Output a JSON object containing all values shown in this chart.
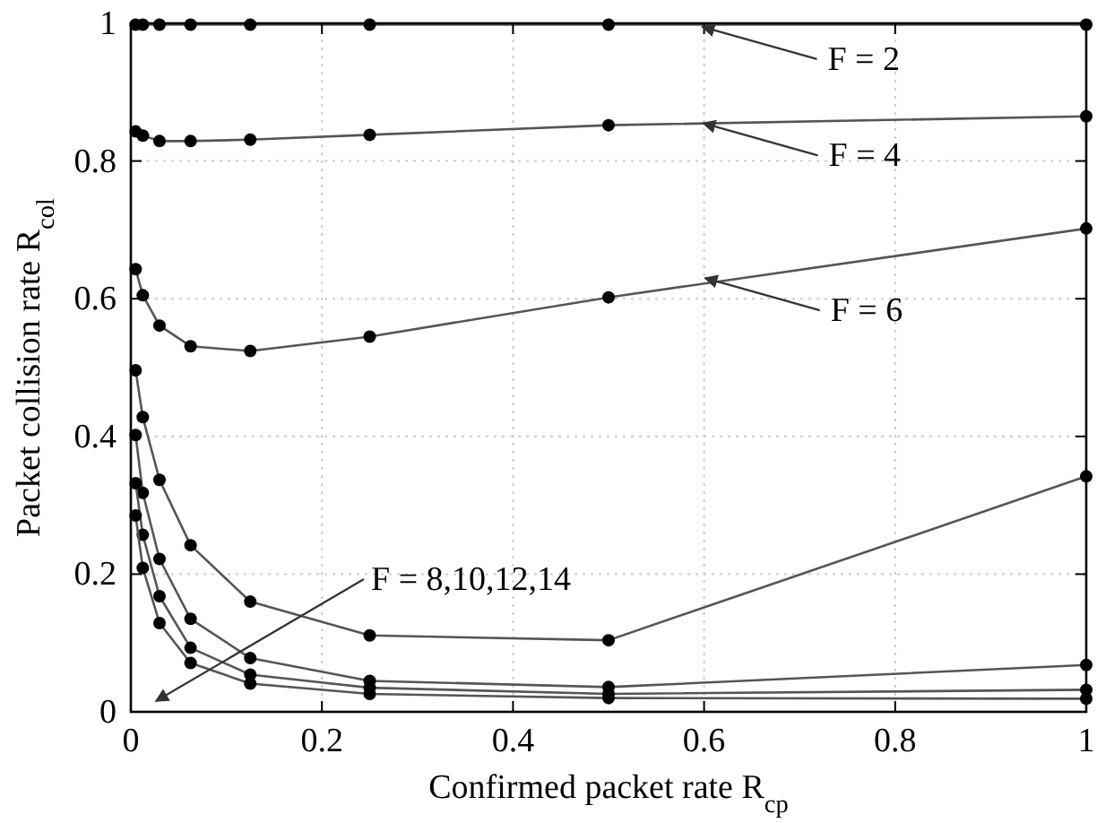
{
  "chart_data": {
    "type": "line",
    "xlabel": "Confirmed packet rate R$_{cp}$",
    "ylabel": "Packet collision rate R$_{col}$",
    "xlim": [
      0,
      1
    ],
    "ylim": [
      0,
      1
    ],
    "xticks": [
      0,
      0.2,
      0.4,
      0.6,
      0.8,
      1
    ],
    "yticks": [
      0,
      0.2,
      0.4,
      0.6,
      0.8,
      1
    ],
    "grid": true,
    "marker": "circle",
    "line_style": "solid",
    "x": [
      0.005,
      0.0125,
      0.03,
      0.0625,
      0.125,
      0.25,
      0.5,
      1
    ],
    "series": [
      {
        "color": "#555555",
        "values": [
          0.998,
          0.998,
          0.998,
          0.998,
          0.998,
          0.998,
          0.998,
          0.998
        ]
      },
      {
        "color": "#555555",
        "values": [
          0.843,
          0.837,
          0.829,
          0.829,
          0.831,
          0.838,
          0.852,
          0.865
        ]
      },
      {
        "color": "#555555",
        "values": [
          0.643,
          0.605,
          0.561,
          0.531,
          0.524,
          0.545,
          0.602,
          0.702
        ]
      },
      {
        "color": "#555555",
        "values": [
          0.496,
          0.428,
          0.337,
          0.242,
          0.16,
          0.111,
          0.104,
          0.342
        ]
      },
      {
        "color": "#555555",
        "values": [
          0.402,
          0.318,
          0.222,
          0.135,
          0.078,
          0.045,
          0.036,
          0.068
        ]
      },
      {
        "color": "#555555",
        "values": [
          0.332,
          0.257,
          0.168,
          0.093,
          0.054,
          0.035,
          0.026,
          0.032
        ]
      },
      {
        "color": "#555555",
        "values": [
          0.285,
          0.209,
          0.129,
          0.071,
          0.041,
          0.026,
          0.02,
          0.019
        ]
      }
    ],
    "annotations": [
      {
        "text": "F = 2",
        "x": 0.598,
        "y": 0.995
      },
      {
        "text": "F = 4",
        "x": 0.599,
        "y": 0.855
      },
      {
        "text": "F = 6",
        "x": 0.601,
        "y": 0.63
      },
      "F = 8,10,12,14"
    ]
  }
}
